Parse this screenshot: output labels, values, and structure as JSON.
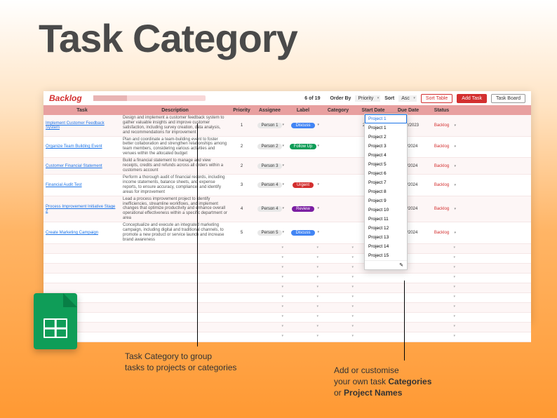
{
  "hero": {
    "title": "Task Category"
  },
  "sheet": {
    "title": "Backlog",
    "counter": "6 of 19",
    "orderByLabel": "Order By",
    "orderByValue": "Priority",
    "sortLabel": "Sort",
    "sortValue": "Asc",
    "buttons": {
      "sort": "Sort Table",
      "add": "Add Task",
      "board": "Task Board"
    }
  },
  "columns": [
    "Task",
    "Description",
    "Priority",
    "Assignee",
    "Label",
    "Category",
    "Start Date",
    "Due Date",
    "Status"
  ],
  "rows": [
    {
      "task": "Implement Customer Feedback System",
      "desc": "Design and implement a customer feedback system to gather valuable insights and improve customer satisfaction, including survey creation, data analysis, and recommendations for improvement",
      "priority": "1",
      "assignee": "Person 1",
      "label": "Discuss",
      "labelColor": "pill-blue",
      "start": "27/12/2023",
      "due": "29/12/2023",
      "status": "Backlog"
    },
    {
      "task": "Organize Team Building Event",
      "desc": "Plan and coordinate a team-building event to foster better collaboration and strengthen relationships among team members, considering various activities and venues within the allocated budget",
      "priority": "2",
      "assignee": "Person 2",
      "label": "Follow Up",
      "labelColor": "pill-green",
      "start": "2024",
      "due": "10/1/2024",
      "status": "Backlog"
    },
    {
      "task": "Customer Financial Statement",
      "desc": "Build a financial statement to manage and view receipts, credits and refunds across all orders within a customers account",
      "priority": "2",
      "assignee": "Person 3",
      "label": "",
      "labelColor": "",
      "start": "2024",
      "due": "12/1/2024",
      "status": "Backlog"
    },
    {
      "task": "Financial Audit Test",
      "desc": "Perform a thorough audit of financial records, including income statements, balance sheets, and expense reports, to ensure accuracy, compliance, and identify areas for improvement",
      "priority": "3",
      "assignee": "Person 4",
      "label": "Urgent",
      "labelColor": "pill-red",
      "start": "2024",
      "due": "17/1/2024",
      "status": "Backlog"
    },
    {
      "task": "Process Improvement Initiative Stage 2",
      "desc": "Lead a process improvement project to identify inefficiencies, streamline workflows, and implement changes that optimize productivity and enhance overall operational effectiveness within a specific department or area",
      "priority": "4",
      "assignee": "Person 4",
      "label": "Review",
      "labelColor": "pill-purple",
      "start": "2024",
      "due": "24/1/2024",
      "status": "Backlog"
    },
    {
      "task": "Create Marketing Campaign",
      "desc": "Conceptualize and execute an integrated marketing campaign, including digital and traditional channels, to promote a new product or service launch and increase brand awareness",
      "priority": "5",
      "assignee": "Person 5",
      "label": "Discuss",
      "labelColor": "pill-blue",
      "start": "2024",
      "due": "26/1/2024",
      "status": "Backlog"
    }
  ],
  "dropdown": {
    "selected": "Project 1",
    "options": [
      "Project 1",
      "Project 2",
      "Project 3",
      "Project 4",
      "Project 5",
      "Project 6",
      "Project 7",
      "Project 8",
      "Project 9",
      "Project 10",
      "Project 11",
      "Project 12",
      "Project 13",
      "Project 14",
      "Project 15"
    ],
    "editIcon": "✎"
  },
  "callouts": {
    "c1a": "Task Category to group",
    "c1b": "tasks to projects or categories",
    "c2a": "Add or customise",
    "c2b_pre": "your own task ",
    "c2b_bold": "Categories",
    "c2c_pre": "or ",
    "c2c_bold": "Project Names"
  },
  "style": {
    "accent": "#d32f2f",
    "headerBg": "#e8a0a0",
    "rowBg": "#fdf6f6",
    "link": "#1a73e8"
  }
}
